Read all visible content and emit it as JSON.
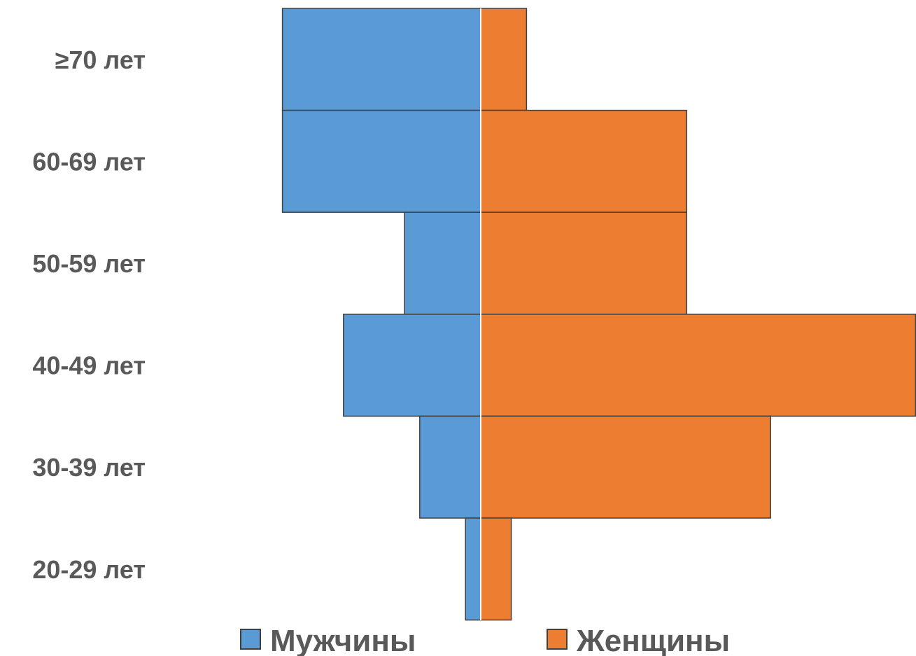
{
  "chart_data": {
    "type": "bar",
    "orientation": "horizontal-diverging",
    "categories": [
      "≥70 лет",
      "60-69 лет",
      "50-59 лет",
      "40-49 лет",
      "30-39 лет",
      "20-29 лет"
    ],
    "series": [
      {
        "name": "Мужчины",
        "values": [
          13,
          13,
          5,
          9,
          4,
          1
        ],
        "color": "#5b9bd5"
      },
      {
        "name": "Женщины",
        "values": [
          3,
          13.5,
          13.5,
          28.5,
          19,
          2
        ],
        "color": "#ed7d31"
      }
    ],
    "legend_position": "bottom",
    "grid": false,
    "axis_labels_visible": false
  }
}
